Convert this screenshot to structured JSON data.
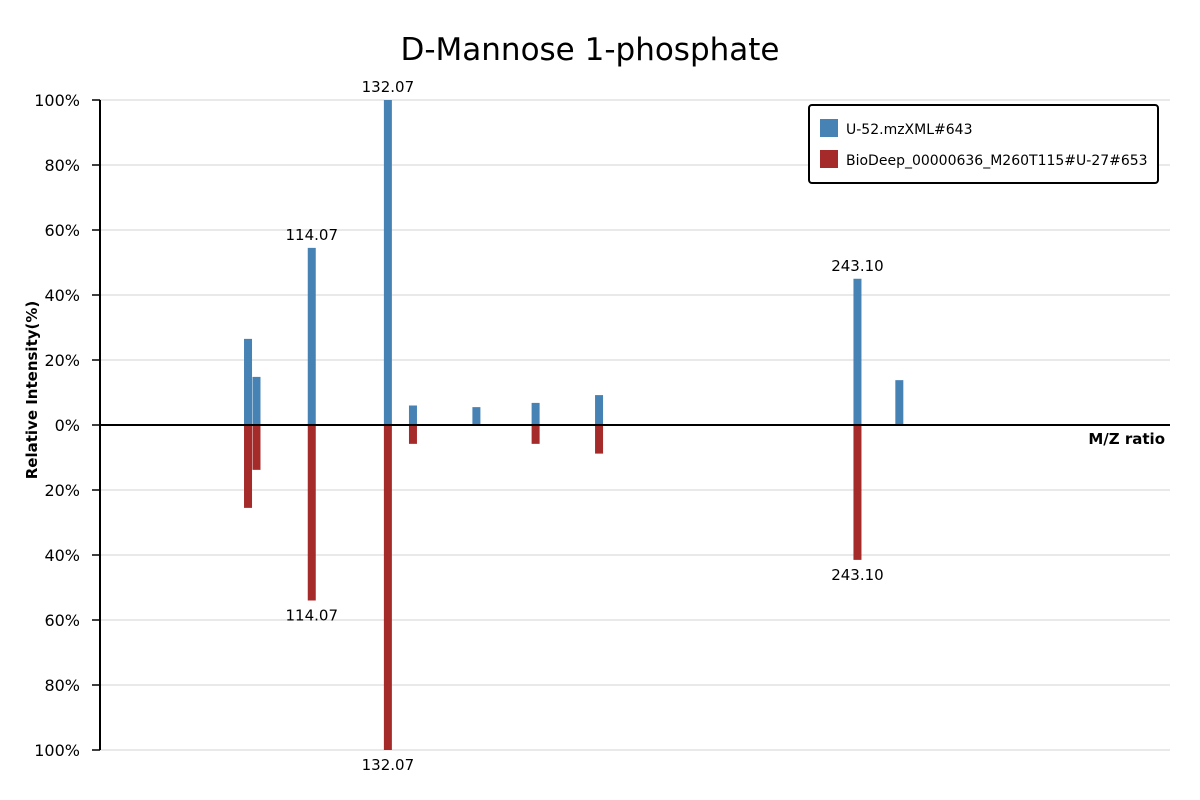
{
  "chart_data": {
    "type": "bar",
    "title": "D-Mannose 1-phosphate",
    "xlabel": "M/Z ratio",
    "ylabel": "Relative Intensity(%)",
    "yticks": [
      "100%",
      "80%",
      "60%",
      "40%",
      "20%",
      "0%",
      "20%",
      "40%",
      "60%",
      "80%",
      "100%"
    ],
    "ylim": [
      -100,
      100
    ],
    "grid": true,
    "legend_position": "top-right",
    "series": [
      {
        "name": "U-52.mzXML#643",
        "color": "#4682b4",
        "direction": "up",
        "peaks": [
          {
            "mz": 99.0,
            "intensity": 26.5
          },
          {
            "mz": 101.0,
            "intensity": 14.8
          },
          {
            "mz": 114.07,
            "intensity": 54.5,
            "label": "114.07"
          },
          {
            "mz": 132.07,
            "intensity": 100,
            "label": "132.07"
          },
          {
            "mz": 138.0,
            "intensity": 6.0
          },
          {
            "mz": 153.0,
            "intensity": 5.5
          },
          {
            "mz": 167.0,
            "intensity": 6.8
          },
          {
            "mz": 182.0,
            "intensity": 9.2
          },
          {
            "mz": 243.1,
            "intensity": 45.0,
            "label": "243.10"
          },
          {
            "mz": 253.0,
            "intensity": 13.8
          }
        ]
      },
      {
        "name": "BioDeep_00000636_M260T115#U-27#653",
        "color": "#a52a2a",
        "direction": "down",
        "peaks": [
          {
            "mz": 99.0,
            "intensity": 25.5
          },
          {
            "mz": 101.0,
            "intensity": 13.8
          },
          {
            "mz": 114.07,
            "intensity": 54.0,
            "label": "114.07"
          },
          {
            "mz": 132.07,
            "intensity": 100,
            "label": "132.07"
          },
          {
            "mz": 138.0,
            "intensity": 5.8
          },
          {
            "mz": 167.0,
            "intensity": 5.8
          },
          {
            "mz": 182.0,
            "intensity": 8.8
          },
          {
            "mz": 243.1,
            "intensity": 41.5,
            "label": "243.10"
          }
        ]
      }
    ]
  }
}
